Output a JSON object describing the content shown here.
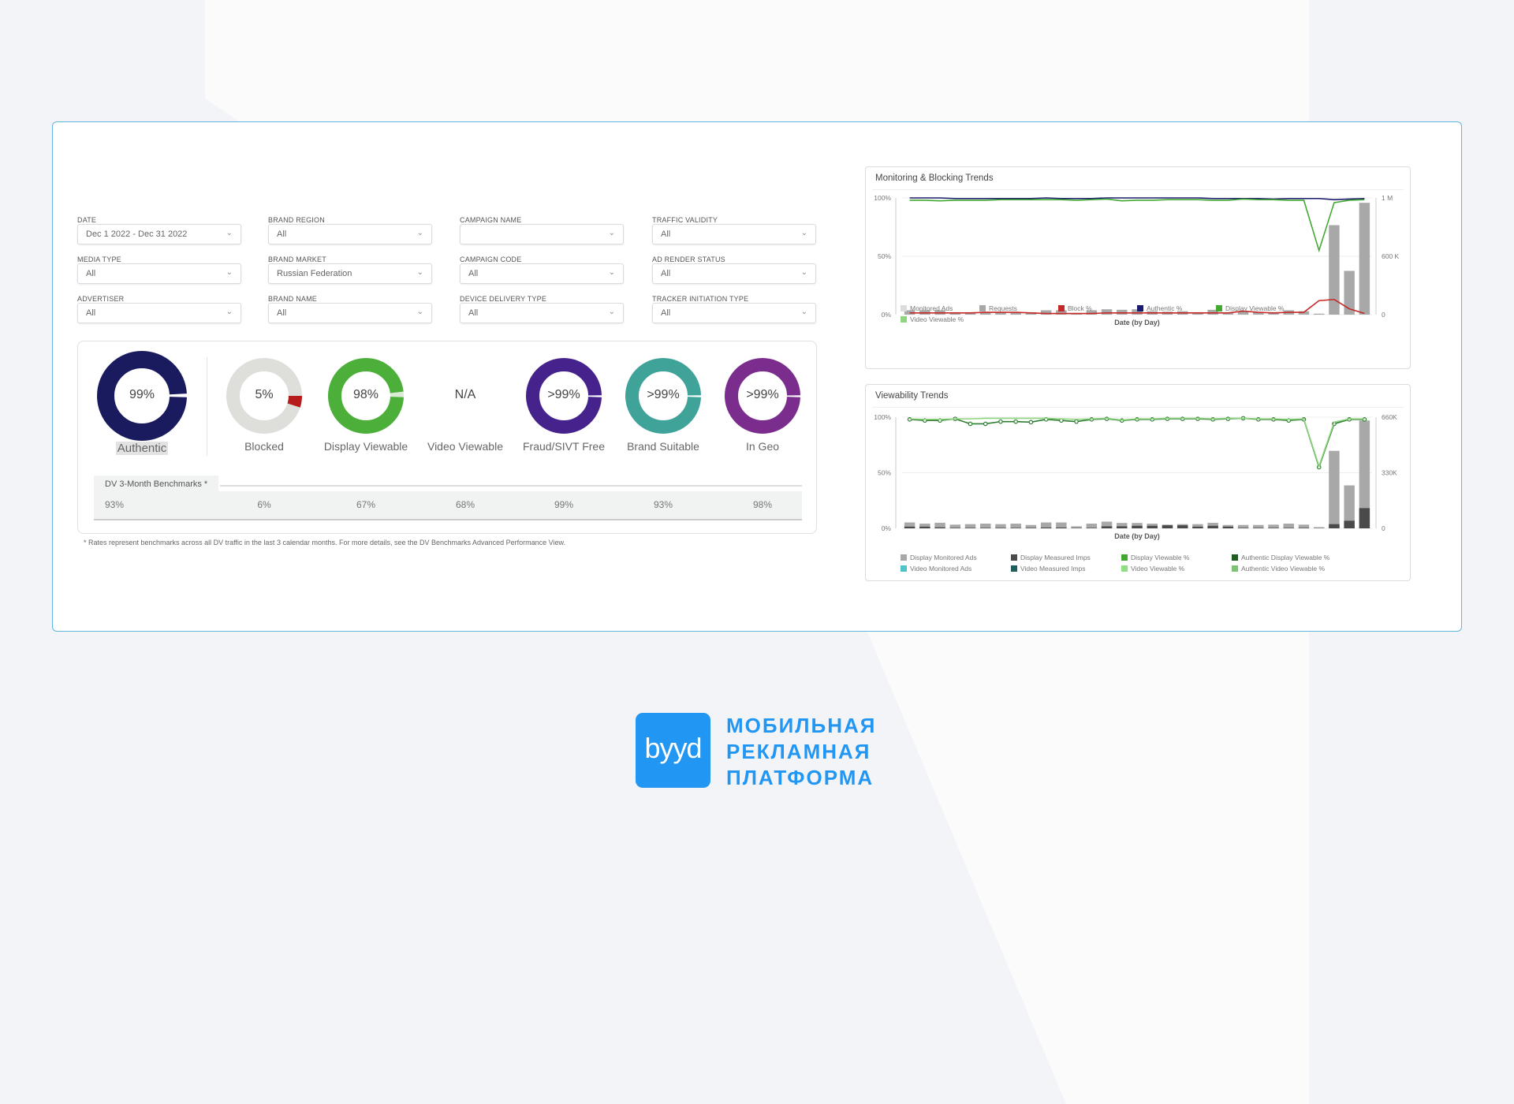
{
  "filters": [
    {
      "label": "DATE",
      "value": "Dec 1 2022 - Dec 31 2022"
    },
    {
      "label": "BRAND REGION",
      "value": "All"
    },
    {
      "label": "CAMPAIGN NAME",
      "value": ""
    },
    {
      "label": "TRAFFIC VALIDITY",
      "value": "All"
    },
    {
      "label": "MEDIA TYPE",
      "value": "All"
    },
    {
      "label": "BRAND MARKET",
      "value": "Russian Federation"
    },
    {
      "label": "CAMPAIGN CODE",
      "value": "All"
    },
    {
      "label": "AD RENDER STATUS",
      "value": "All"
    },
    {
      "label": "ADVERTISER",
      "value": "All"
    },
    {
      "label": "BRAND NAME",
      "value": "All"
    },
    {
      "label": "DEVICE DELIVERY TYPE",
      "value": "All"
    },
    {
      "label": "TRACKER INITIATION TYPE",
      "value": "All"
    }
  ],
  "metrics": [
    {
      "label": "Authentic",
      "value": "99%",
      "pct": 99,
      "color": "#1a1a5e",
      "rest": "#ffffff",
      "benchmark": "93%"
    },
    {
      "label": "Blocked",
      "value": "5%",
      "pct": 5,
      "color": "#b71c1c",
      "rest": "#dededb",
      "benchmark": "6%",
      "fillIsRest": true
    },
    {
      "label": "Display Viewable",
      "value": "98%",
      "pct": 98,
      "color": "#4caf3a",
      "rest": "#dcebd6",
      "benchmark": "67%"
    },
    {
      "label": "Video Viewable",
      "value": "N/A",
      "pct": null,
      "benchmark": "68%"
    },
    {
      "label": "Fraud/SIVT Free",
      "value": ">99%",
      "pct": 99.6,
      "color": "#46238c",
      "rest": "#ffffff",
      "benchmark": "99%"
    },
    {
      "label": "Brand Suitable",
      "value": ">99%",
      "pct": 99.6,
      "color": "#3fa39a",
      "rest": "#ffffff",
      "benchmark": "93%"
    },
    {
      "label": "In Geo",
      "value": ">99%",
      "pct": 99.6,
      "color": "#7b2d8e",
      "rest": "#ffffff",
      "benchmark": "98%"
    }
  ],
  "benchmarks_title": "DV 3-Month Benchmarks *",
  "footnote": "* Rates represent benchmarks across all DV traffic in the last 3 calendar months. For more details, see the DV Benchmarks Advanced Performance View.",
  "chart_data": [
    {
      "type": "bar+line",
      "title": "Monitoring & Blocking Trends",
      "xlabel": "Date (by Day)",
      "yleft_ticks": [
        "100%",
        "50%",
        "0%"
      ],
      "yright_ticks": [
        "1 M",
        "600 K",
        "0"
      ],
      "yleft_range": [
        0,
        100
      ],
      "yright_range": [
        0,
        1200000
      ],
      "x": [
        1,
        2,
        3,
        4,
        5,
        6,
        7,
        8,
        9,
        10,
        11,
        12,
        13,
        14,
        15,
        16,
        17,
        18,
        19,
        20,
        21,
        22,
        23,
        24,
        25,
        26,
        27,
        28,
        29,
        30,
        31
      ],
      "bars": [
        {
          "name": "Requests",
          "color": "#a8a8a8",
          "values": [
            45000,
            45000,
            45000,
            25000,
            25000,
            25000,
            30000,
            25000,
            25000,
            45000,
            45000,
            15000,
            45000,
            55000,
            50000,
            55000,
            35000,
            30000,
            35000,
            25000,
            50000,
            25000,
            30000,
            25000,
            25000,
            45000,
            35000,
            10000,
            920000,
            450000,
            1150000
          ]
        }
      ],
      "lines": [
        {
          "name": "Authentic %",
          "color": "#1a1a6e",
          "values": [
            100,
            100,
            100,
            99.5,
            99.5,
            99.5,
            99.5,
            99.5,
            99.5,
            100,
            99.5,
            99.5,
            99.5,
            100,
            100,
            100,
            100,
            100,
            100,
            100,
            99.5,
            99.5,
            99.5,
            99.5,
            99,
            99.5,
            99.5,
            99.5,
            98.5,
            99,
            99.5
          ]
        },
        {
          "name": "Display Viewable %",
          "color": "#43a832",
          "values": [
            98,
            98,
            97.5,
            98,
            98,
            98,
            98.5,
            98.5,
            98.5,
            98.5,
            98.5,
            98,
            98.5,
            99,
            97.5,
            98,
            98,
            98.5,
            98.5,
            98.5,
            98,
            98,
            99,
            98.5,
            98.5,
            98,
            98,
            55,
            96,
            98,
            98.5
          ]
        },
        {
          "name": "Block %",
          "color": "#c62828",
          "values": [
            1.5,
            1.5,
            1.5,
            1.5,
            1.5,
            2,
            2,
            2,
            1.5,
            1,
            1,
            1,
            1,
            1.5,
            1.5,
            1.5,
            1.5,
            1.5,
            1.5,
            1.5,
            1.5,
            1.5,
            3,
            2,
            1.5,
            2,
            2,
            12,
            13,
            5,
            1
          ]
        }
      ],
      "legend": [
        {
          "name": "Monitored Ads",
          "color": "#dcdcdc"
        },
        {
          "name": "Requests",
          "color": "#a8a8a8"
        },
        {
          "name": "Block %",
          "color": "#c62828"
        },
        {
          "name": "Authentic %",
          "color": "#1a1a6e"
        },
        {
          "name": "Display Viewable %",
          "color": "#43a832"
        },
        {
          "name": "Video Viewable %",
          "color": "#8fd47e"
        }
      ]
    },
    {
      "type": "bar+line",
      "title": "Viewability Trends",
      "xlabel": "Date (by Day)",
      "yleft_ticks": [
        "100%",
        "50%",
        "0%"
      ],
      "yright_ticks": [
        "660K",
        "330K",
        "0"
      ],
      "yleft_range": [
        0,
        100
      ],
      "yright_range": [
        0,
        660000
      ],
      "x": [
        1,
        2,
        3,
        4,
        5,
        6,
        7,
        8,
        9,
        10,
        11,
        12,
        13,
        14,
        15,
        16,
        17,
        18,
        19,
        20,
        21,
        22,
        23,
        24,
        25,
        26,
        27,
        28,
        29,
        30,
        31
      ],
      "bars": [
        {
          "name": "Display Monitored Ads",
          "color": "#a8a8a8",
          "values": [
            35000,
            28000,
            33000,
            22000,
            25000,
            28000,
            25000,
            28000,
            20000,
            35000,
            35000,
            12000,
            28000,
            40000,
            32000,
            32000,
            28000,
            22000,
            25000,
            25000,
            33000,
            20000,
            20000,
            20000,
            22000,
            28000,
            22000,
            7000,
            460000,
            255000,
            640000
          ]
        },
        {
          "name": "Display Measured Imps",
          "color": "#4a4a4a",
          "values": [
            10000,
            10000,
            6000,
            3000,
            3000,
            3000,
            3000,
            3000,
            3000,
            5000,
            5000,
            2000,
            3000,
            12000,
            12000,
            15000,
            15000,
            18000,
            18000,
            10000,
            15000,
            10000,
            3000,
            3000,
            3000,
            3000,
            3000,
            1000,
            25000,
            45000,
            120000
          ]
        }
      ],
      "lines": [
        {
          "name": "Display Viewable %",
          "color": "#2e7d32",
          "markers": true,
          "values": [
            98,
            97,
            97,
            98.5,
            94,
            94,
            96,
            96,
            95.5,
            98,
            97,
            96,
            98,
            98.5,
            97,
            98,
            98,
            98.5,
            98.5,
            98.5,
            98,
            98.5,
            99,
            98,
            98,
            97,
            98,
            55,
            94,
            98,
            98
          ]
        },
        {
          "name": "Video Viewable %",
          "color": "#8fd47e",
          "values": [
            98.5,
            98,
            98,
            98.5,
            98.5,
            99,
            99,
            99,
            99,
            99,
            98.5,
            98,
            98.5,
            99,
            97.5,
            98.5,
            98.5,
            99,
            99,
            99,
            98.5,
            99,
            99,
            98.5,
            98.5,
            98,
            98.5,
            56,
            95.5,
            98.5,
            98.5
          ]
        }
      ],
      "legend": [
        {
          "name": "Display Monitored Ads",
          "color": "#a8a8a8"
        },
        {
          "name": "Display Measured Imps",
          "color": "#4a4a4a"
        },
        {
          "name": "Display Viewable %",
          "color": "#43a832"
        },
        {
          "name": "Authentic Display Viewable %",
          "color": "#1b5e20"
        },
        {
          "name": "Video Monitored Ads",
          "color": "#4fc3c8"
        },
        {
          "name": "Video Measured Imps",
          "color": "#1f5e5a"
        },
        {
          "name": "Video Viewable %",
          "color": "#8fe07e"
        },
        {
          "name": "Authentic Video Viewable %",
          "color": "#7cc474"
        }
      ]
    }
  ],
  "brand": {
    "logo_text": "byyd",
    "lines": [
      "МОБИЛЬНАЯ",
      "РЕКЛАМНАЯ",
      "ПЛАТФОРМА"
    ]
  }
}
